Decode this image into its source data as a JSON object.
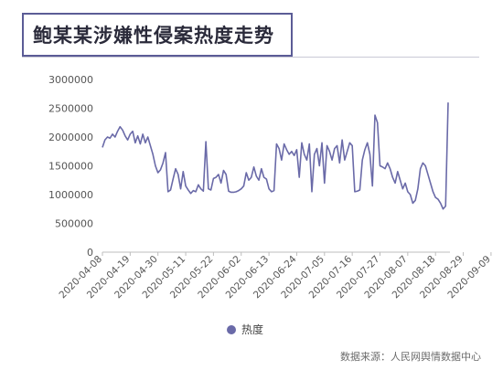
{
  "title": "鲍某某涉嫌性侵案热度走势",
  "source": "数据来源：人民网舆情数据中心",
  "line_color": "#6a6aa8",
  "chart_data": {
    "type": "line",
    "title": "鲍某某涉嫌性侵案热度走势",
    "xlabel": "",
    "ylabel": "",
    "ylim": [
      0,
      3000000
    ],
    "y_ticks": [
      0,
      500000,
      1000000,
      1500000,
      2000000,
      2500000,
      3000000
    ],
    "y_tick_labels": [
      "0",
      "500000",
      "1000000",
      "1500000",
      "2000000",
      "2500000",
      "3000000"
    ],
    "x_tick_labels": [
      "2020-04-08",
      "2020-04-19",
      "2020-04-30",
      "2020-05-11",
      "2020-05-22",
      "2020-06-02",
      "2020-06-13",
      "2020-06-24",
      "2020-07-05",
      "2020-07-16",
      "2020-07-27",
      "2020-08-07",
      "2020-08-18",
      "2020-08-29",
      "2020-09-09"
    ],
    "x_tick_indices": [
      0,
      11,
      22,
      33,
      44,
      55,
      66,
      77,
      88,
      99,
      110,
      121,
      132,
      143,
      154
    ],
    "grid": false,
    "legend": "bottom-center",
    "series": [
      {
        "name": "热度",
        "values": [
          1820000,
          1950000,
          2000000,
          1980000,
          2050000,
          2000000,
          2100000,
          2180000,
          2120000,
          2020000,
          1950000,
          2050000,
          2100000,
          1900000,
          2020000,
          1880000,
          2050000,
          1900000,
          2000000,
          1850000,
          1700000,
          1500000,
          1380000,
          1430000,
          1550000,
          1730000,
          1050000,
          1080000,
          1270000,
          1450000,
          1350000,
          1100000,
          1400000,
          1150000,
          1080000,
          1020000,
          1070000,
          1050000,
          1170000,
          1100000,
          1060000,
          1920000,
          1100000,
          1080000,
          1280000,
          1300000,
          1350000,
          1200000,
          1420000,
          1350000,
          1060000,
          1040000,
          1040000,
          1050000,
          1070000,
          1100000,
          1150000,
          1380000,
          1250000,
          1300000,
          1480000,
          1320000,
          1250000,
          1450000,
          1300000,
          1270000,
          1100000,
          1050000,
          1070000,
          1880000,
          1800000,
          1600000,
          1880000,
          1780000,
          1700000,
          1750000,
          1680000,
          1780000,
          1300000,
          1900000,
          1700000,
          1600000,
          1880000,
          1050000,
          1700000,
          1800000,
          1500000,
          1900000,
          1200000,
          1850000,
          1750000,
          1600000,
          1800000,
          1850000,
          1550000,
          1950000,
          1600000,
          1750000,
          1900000,
          1850000,
          1050000,
          1060000,
          1080000,
          1600000,
          1780000,
          1900000,
          1700000,
          1150000,
          2380000,
          2250000,
          1500000,
          1480000,
          1450000,
          1550000,
          1450000,
          1300000,
          1200000,
          1400000,
          1250000,
          1100000,
          1200000,
          1050000,
          1000000,
          850000,
          900000,
          1100000,
          1450000,
          1550000,
          1500000,
          1350000,
          1200000,
          1050000,
          950000,
          920000,
          850000,
          750000,
          800000,
          2600000
        ]
      }
    ]
  }
}
